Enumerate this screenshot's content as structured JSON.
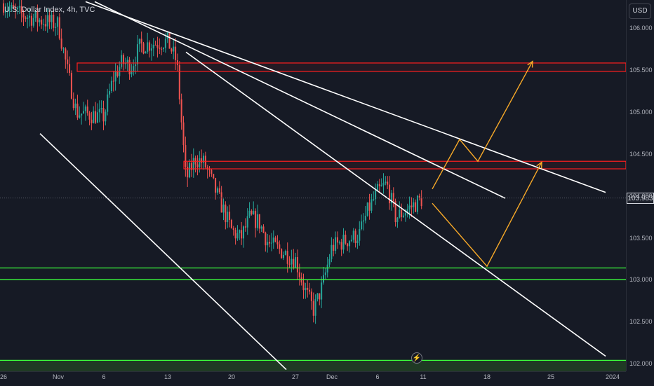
{
  "header": {
    "symbol_title": "U.S. Dollar Index, 4h, TVC"
  },
  "price_scale": {
    "currency": "USD",
    "last_price": "103.983"
  },
  "colors": {
    "up": "#26a69a",
    "down": "#ef5350",
    "resistance": "#ff1f1f",
    "support": "#3cff3c",
    "channel": "#ffffff",
    "projection": "#f7a928",
    "background": "#161a25",
    "text": "#d1d4dc"
  },
  "icons": {
    "flash": "lightning-icon"
  },
  "chart_data": {
    "type": "candlestick",
    "title": "U.S. Dollar Index, 4h, TVC",
    "ylim": [
      101.92,
      106.34
    ],
    "yticks": [
      "106.000",
      "105.500",
      "105.000",
      "104.500",
      "104.000",
      "103.500",
      "103.000",
      "102.500",
      "102.000"
    ],
    "ytick_values": [
      106.0,
      105.5,
      105.0,
      104.5,
      104.0,
      103.5,
      103.0,
      102.5,
      102.0
    ],
    "xticks": [
      "26",
      "Nov",
      "6",
      "13",
      "20",
      "27",
      "Dec",
      "6",
      "11",
      "18",
      "25",
      "2024"
    ],
    "xtick_dates": [
      "2023-10-26",
      "2023-11-01",
      "2023-11-06",
      "2023-11-13",
      "2023-11-20",
      "2023-11-27",
      "2023-12-01",
      "2023-12-06",
      "2023-12-11",
      "2023-12-18",
      "2023-12-25",
      "2024-01-01"
    ],
    "price_path": [
      [
        "2023-10-26",
        106.3
      ],
      [
        "2023-10-27",
        106.2
      ],
      [
        "2023-10-30",
        106.1
      ],
      [
        "2023-11-01",
        106.05
      ],
      [
        "2023-11-02",
        105.5
      ],
      [
        "2023-11-03",
        105.0
      ],
      [
        "2023-11-06",
        104.95
      ],
      [
        "2023-11-07",
        105.4
      ],
      [
        "2023-11-08",
        105.6
      ],
      [
        "2023-11-09",
        105.55
      ],
      [
        "2023-11-10",
        105.8
      ],
      [
        "2023-11-13",
        105.85
      ],
      [
        "2023-11-14",
        105.6
      ],
      [
        "2023-11-15",
        104.2
      ],
      [
        "2023-11-16",
        104.45
      ],
      [
        "2023-11-17",
        104.4
      ],
      [
        "2023-11-20",
        103.6
      ],
      [
        "2023-11-21",
        103.5
      ],
      [
        "2023-11-22",
        103.75
      ],
      [
        "2023-11-23",
        103.7
      ],
      [
        "2023-11-24",
        103.45
      ],
      [
        "2023-11-27",
        103.25
      ],
      [
        "2023-11-28",
        102.9
      ],
      [
        "2023-11-29",
        102.65
      ],
      [
        "2023-11-30",
        102.95
      ],
      [
        "2023-12-01",
        103.4
      ],
      [
        "2023-12-04",
        103.55
      ],
      [
        "2023-12-05",
        103.85
      ],
      [
        "2023-12-06",
        104.05
      ],
      [
        "2023-12-07",
        104.15
      ],
      [
        "2023-12-08",
        103.75
      ],
      [
        "2023-12-11",
        103.98
      ]
    ],
    "last_price": 103.983,
    "resistance_zones": [
      [
        105.49,
        105.59
      ],
      [
        104.33,
        104.42
      ]
    ],
    "support_lines": [
      103.15,
      103.01,
      102.05
    ],
    "support_zone": [
      101.92,
      102.05
    ],
    "channel_lines": [
      {
        "points": [
          [
            "2023-10-30",
            104.75
          ],
          [
            "2023-11-26",
            101.94
          ]
        ]
      },
      {
        "points": [
          [
            "2023-11-05",
            106.32
          ],
          [
            "2023-12-20",
            103.98
          ]
        ]
      },
      {
        "points": [
          [
            "2023-11-04",
            106.32
          ],
          [
            "2023-12-31",
            104.05
          ]
        ]
      },
      {
        "points": [
          [
            "2023-11-15",
            105.72
          ],
          [
            "2023-12-31",
            102.1
          ]
        ]
      }
    ],
    "projection_paths": [
      [
        [
          "2023-12-12",
          104.09
        ],
        [
          "2023-12-15",
          104.68
        ],
        [
          "2023-12-17",
          104.42
        ],
        [
          "2023-12-23",
          105.61
        ]
      ],
      [
        [
          "2023-12-12",
          103.92
        ],
        [
          "2023-12-18",
          103.17
        ],
        [
          "2023-12-24",
          104.41
        ]
      ]
    ]
  }
}
